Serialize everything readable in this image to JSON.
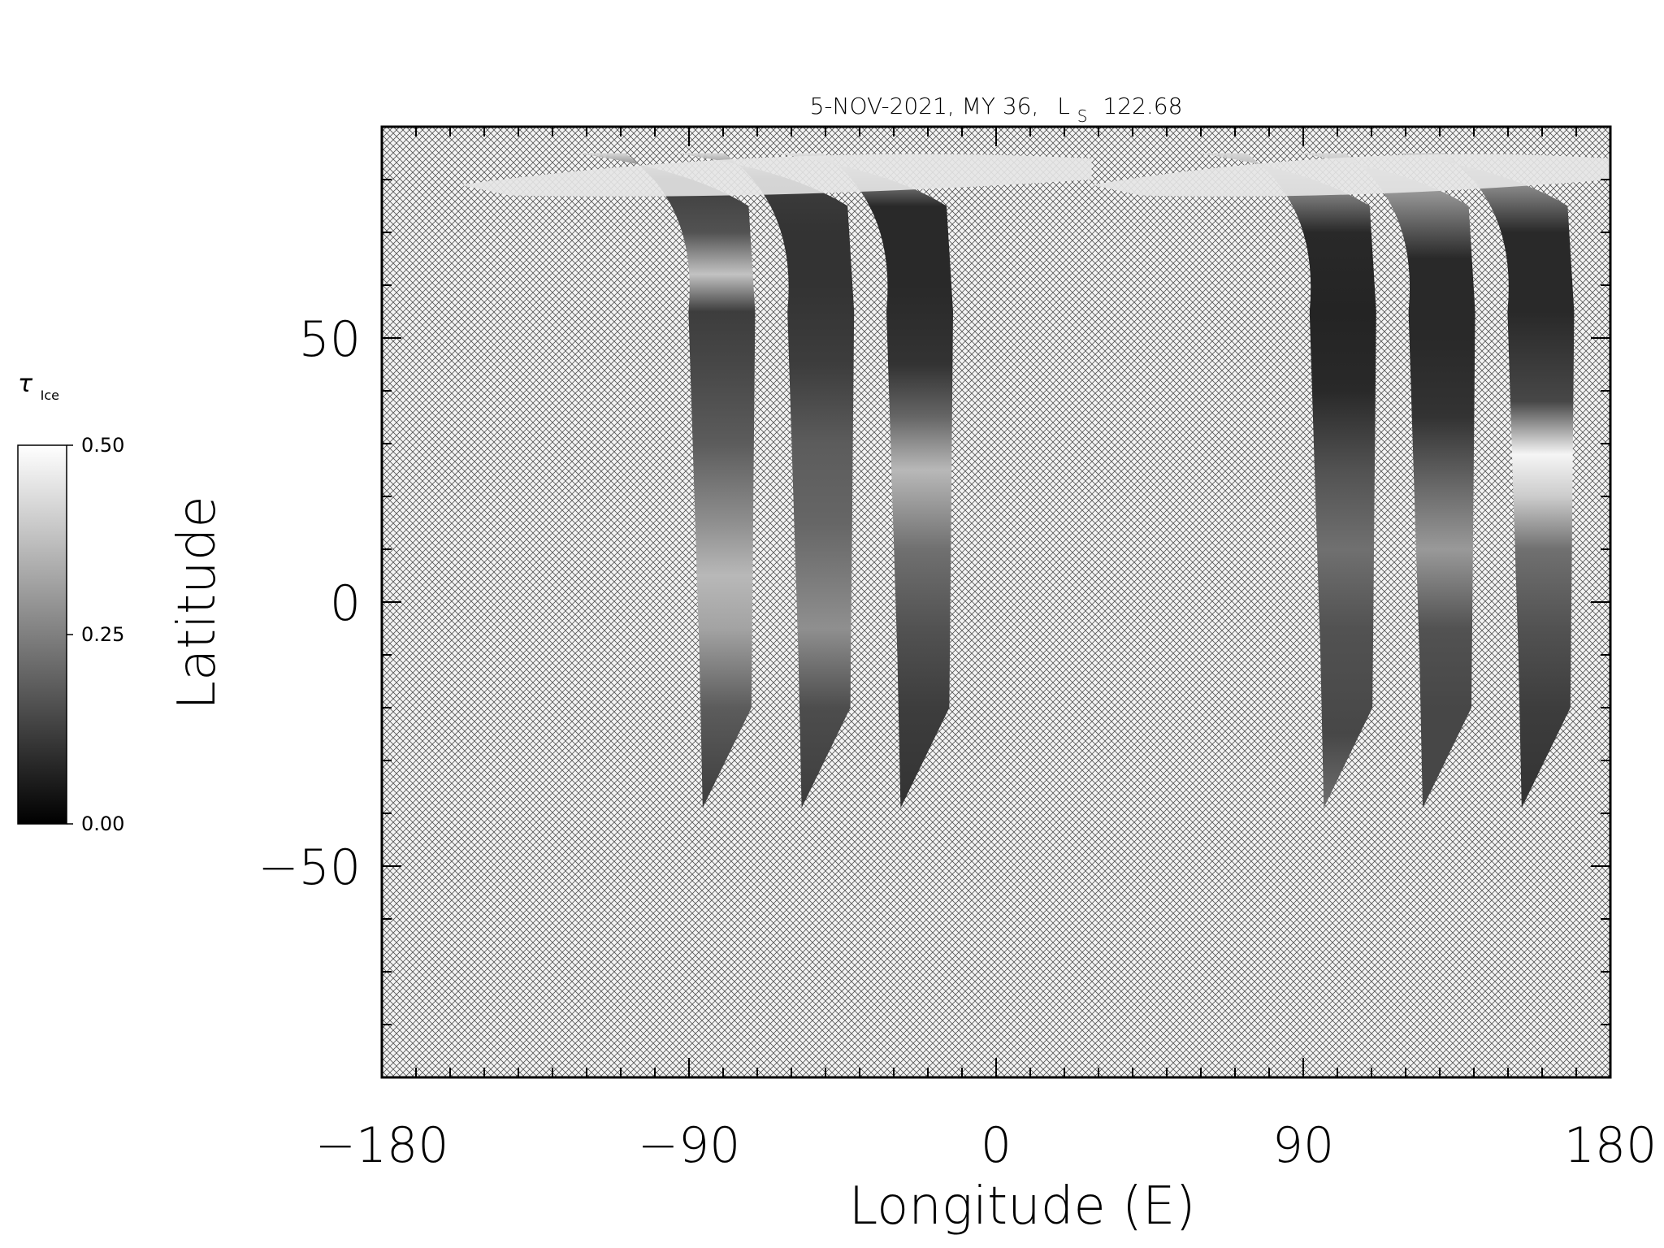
{
  "chart_data": {
    "type": "heatmap",
    "title": {
      "date": "5-NOV-2021, MY 36,",
      "ls_symbol": "L",
      "ls_subscript": "S",
      "ls_value": "122.68"
    },
    "xlabel": "Longitude (E)",
    "ylabel": "Latitude",
    "xlim": [
      -180,
      180
    ],
    "ylim": [
      -90,
      90
    ],
    "x_ticks": [
      {
        "value": -180,
        "label": "−180"
      },
      {
        "value": -90,
        "label": "−90"
      },
      {
        "value": 0,
        "label": "0"
      },
      {
        "value": 90,
        "label": "90"
      },
      {
        "value": 180,
        "label": "180"
      }
    ],
    "y_ticks": [
      {
        "value": 50,
        "label": "50"
      },
      {
        "value": 0,
        "label": "0"
      },
      {
        "value": -50,
        "label": "−50"
      }
    ],
    "x_minor_step": 10,
    "y_minor_step": 10,
    "no_data_fill": "crosshatch",
    "colorbar": {
      "label_symbol": "τ",
      "label_subscript": "Ice",
      "min": 0.0,
      "max": 0.5,
      "ticks": [
        {
          "value": 0.5,
          "label": "0.50"
        },
        {
          "value": 0.25,
          "label": "0.25"
        },
        {
          "value": 0.0,
          "label": "0.00"
        }
      ],
      "colormap": "grayscale"
    },
    "swaths": [
      {
        "lon_south": -86,
        "lon_north": -73,
        "lat_south": -39,
        "lat_top": 85,
        "bands": [
          [
            -39,
            0.12
          ],
          [
            -20,
            0.18
          ],
          [
            -5,
            0.32
          ],
          [
            5,
            0.36
          ],
          [
            15,
            0.28
          ],
          [
            30,
            0.18
          ],
          [
            45,
            0.14
          ],
          [
            55,
            0.12
          ],
          [
            62,
            0.38
          ],
          [
            70,
            0.16
          ],
          [
            80,
            0.12
          ],
          [
            85,
            0.42
          ]
        ]
      },
      {
        "lon_south": -57,
        "lon_north": -44,
        "lat_south": -39,
        "lat_top": 85,
        "bands": [
          [
            -39,
            0.12
          ],
          [
            -20,
            0.15
          ],
          [
            -5,
            0.28
          ],
          [
            5,
            0.24
          ],
          [
            15,
            0.2
          ],
          [
            30,
            0.18
          ],
          [
            45,
            0.12
          ],
          [
            60,
            0.1
          ],
          [
            70,
            0.1
          ],
          [
            80,
            0.12
          ],
          [
            85,
            0.42
          ]
        ]
      },
      {
        "lon_south": -28,
        "lon_north": -15,
        "lat_south": -39,
        "lat_top": 85,
        "bands": [
          [
            -39,
            0.1
          ],
          [
            -20,
            0.12
          ],
          [
            -5,
            0.16
          ],
          [
            10,
            0.22
          ],
          [
            25,
            0.36
          ],
          [
            35,
            0.2
          ],
          [
            45,
            0.1
          ],
          [
            60,
            0.08
          ],
          [
            75,
            0.08
          ],
          [
            85,
            0.44
          ]
        ]
      },
      {
        "lon_south": 96,
        "lon_north": 109,
        "lat_south": -39,
        "lat_top": 85,
        "bands": [
          [
            -39,
            0.22
          ],
          [
            -25,
            0.14
          ],
          [
            -5,
            0.16
          ],
          [
            10,
            0.22
          ],
          [
            25,
            0.16
          ],
          [
            40,
            0.08
          ],
          [
            55,
            0.07
          ],
          [
            70,
            0.08
          ],
          [
            85,
            0.42
          ]
        ]
      },
      {
        "lon_south": 125,
        "lon_north": 138,
        "lat_south": -39,
        "lat_top": 85,
        "bands": [
          [
            -39,
            0.14
          ],
          [
            -20,
            0.14
          ],
          [
            -5,
            0.16
          ],
          [
            10,
            0.3
          ],
          [
            20,
            0.22
          ],
          [
            35,
            0.1
          ],
          [
            50,
            0.08
          ],
          [
            65,
            0.08
          ],
          [
            85,
            0.42
          ]
        ]
      },
      {
        "lon_south": 154,
        "lon_north": 167,
        "lat_south": -39,
        "lat_top": 85,
        "bands": [
          [
            -39,
            0.1
          ],
          [
            -20,
            0.12
          ],
          [
            -5,
            0.16
          ],
          [
            10,
            0.22
          ],
          [
            20,
            0.4
          ],
          [
            28,
            0.48
          ],
          [
            38,
            0.14
          ],
          [
            55,
            0.08
          ],
          [
            70,
            0.08
          ],
          [
            85,
            0.4
          ]
        ]
      }
    ]
  }
}
